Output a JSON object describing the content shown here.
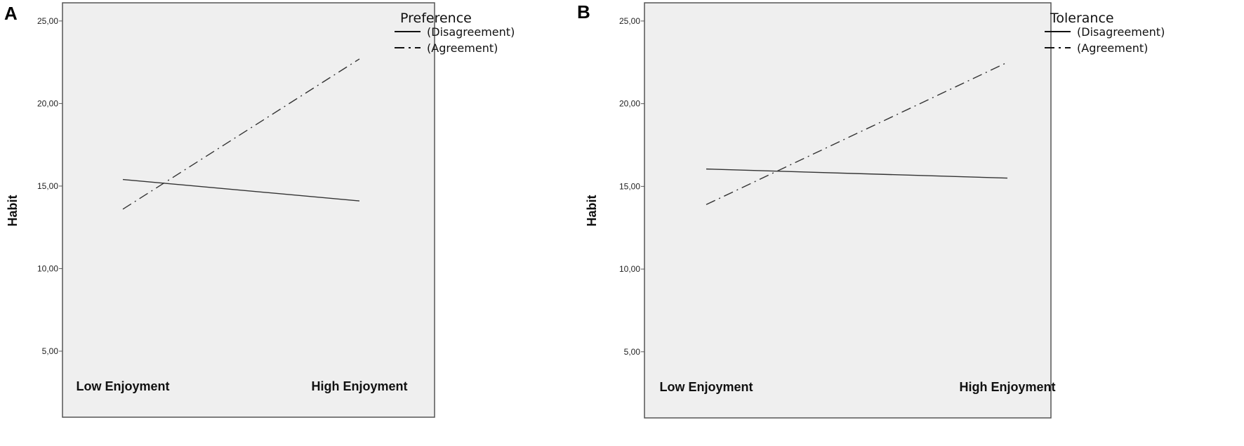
{
  "chart_data": [
    {
      "type": "line",
      "panel_label": "A",
      "ylabel": "Habit",
      "xlabel": "",
      "categories": [
        "Low Enjoyment",
        "High Enjoyment"
      ],
      "ylim": [
        1,
        26.1
      ],
      "yticks": [
        5,
        10,
        15,
        20,
        25
      ],
      "ytick_labels": [
        "5,00",
        "10,00",
        "15,00",
        "20,00",
        "25,00"
      ],
      "legend_title": "Preference",
      "legend_position": "top-right outside",
      "grid": false,
      "series": [
        {
          "name": "(Disagreement)",
          "style": "solid",
          "values": [
            15.4,
            14.1
          ]
        },
        {
          "name": "(Agreement)",
          "style": "dash-dot",
          "values": [
            13.6,
            22.7
          ]
        }
      ]
    },
    {
      "type": "line",
      "panel_label": "B",
      "ylabel": "Habit",
      "xlabel": "",
      "categories": [
        "Low Enjoyment",
        "High Enjoyment"
      ],
      "ylim": [
        1,
        26.1
      ],
      "yticks": [
        5,
        10,
        15,
        20,
        25
      ],
      "ytick_labels": [
        "5,00",
        "10,00",
        "15,00",
        "20,00",
        "25,00"
      ],
      "legend_title": "Tolerance",
      "legend_position": "top-right outside",
      "grid": false,
      "series": [
        {
          "name": "(Disagreement)",
          "style": "solid",
          "values": [
            16.05,
            15.5
          ]
        },
        {
          "name": "(Agreement)",
          "style": "dash-dot",
          "values": [
            13.9,
            22.5
          ]
        }
      ]
    }
  ],
  "colors": {
    "plot_bg": "#efefef",
    "frame": "#555555",
    "line": "#333333"
  }
}
